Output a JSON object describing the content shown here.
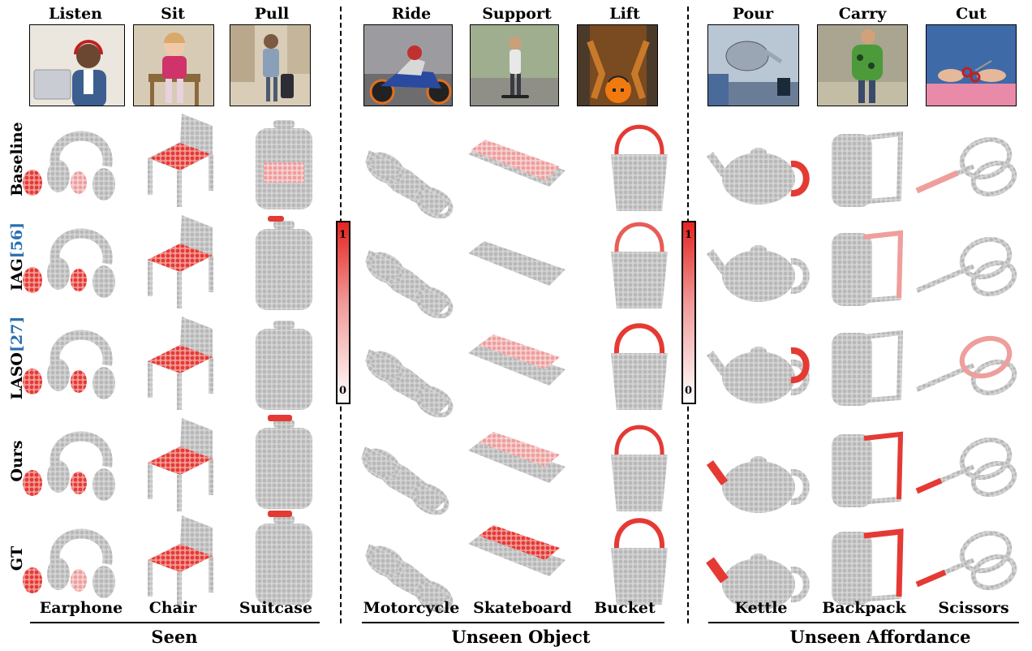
{
  "affordances": [
    "Listen",
    "Sit",
    "Pull",
    "Ride",
    "Support",
    "Lift",
    "Pour",
    "Carry",
    "Cut"
  ],
  "objects": [
    "Earphone",
    "Chair",
    "Suitcase",
    "Motorcycle",
    "Skateboard",
    "Bucket",
    "Kettle",
    "Backpack",
    "Scissors"
  ],
  "groups": [
    "Seen",
    "Unseen Object",
    "Unseen Affordance"
  ],
  "methods": [
    {
      "label": "Baseline",
      "cite": ""
    },
    {
      "label": "IAG",
      "cite": "[56]"
    },
    {
      "label": "LASO",
      "cite": "[27]"
    },
    {
      "label": "Ours",
      "cite": ""
    },
    {
      "label": "GT",
      "cite": ""
    }
  ],
  "colorbar": {
    "max": "1",
    "min": "0",
    "high_color": "#e52420",
    "low_color": "#ffffff"
  }
}
